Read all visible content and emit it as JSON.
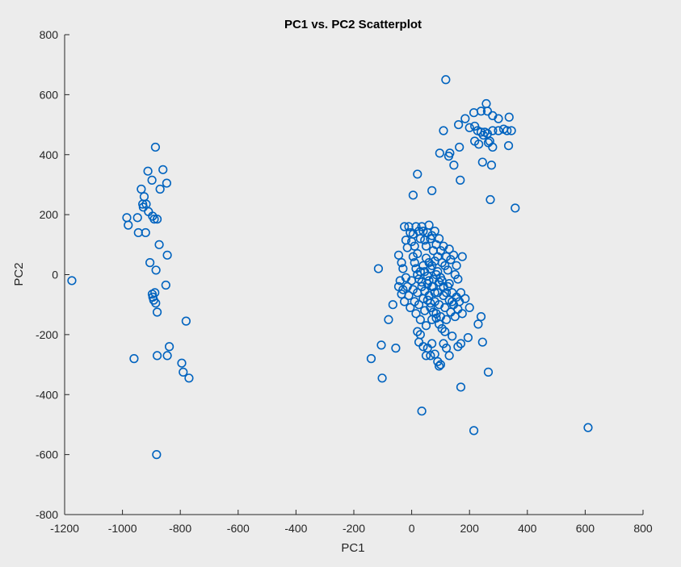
{
  "chart_data": {
    "type": "scatter",
    "title": "PC1 vs. PC2 Scatterplot",
    "xlabel": "PC1",
    "ylabel": "PC2",
    "xlim": [
      -1200,
      800
    ],
    "ylim": [
      -800,
      800
    ],
    "xticks": [
      -1200,
      -1000,
      -800,
      -600,
      -400,
      -200,
      0,
      200,
      400,
      600,
      800
    ],
    "yticks": [
      -800,
      -600,
      -400,
      -200,
      0,
      200,
      400,
      600,
      800
    ],
    "xtick_labels": [
      "-1200",
      "-1000",
      "-800",
      "-600",
      "-400",
      "-200",
      "0",
      "200",
      "400",
      "600",
      "800"
    ],
    "ytick_labels": [
      "-800",
      "-600",
      "-400",
      "-200",
      "0",
      "200",
      "400",
      "600",
      "800"
    ],
    "grid": false,
    "marker_color": "#0063bf",
    "series": [
      {
        "marker": "circle-open",
        "points": [
          [
            -1175,
            -20
          ],
          [
            -985,
            190
          ],
          [
            -980,
            165
          ],
          [
            -948,
            190
          ],
          [
            -945,
            140
          ],
          [
            -935,
            285
          ],
          [
            -930,
            235
          ],
          [
            -928,
            225
          ],
          [
            -925,
            260
          ],
          [
            -920,
            140
          ],
          [
            -918,
            235
          ],
          [
            -912,
            345
          ],
          [
            -910,
            210
          ],
          [
            -905,
            40
          ],
          [
            -898,
            315
          ],
          [
            -896,
            195
          ],
          [
            -890,
            185
          ],
          [
            -886,
            425
          ],
          [
            -884,
            15
          ],
          [
            -880,
            185
          ],
          [
            -870,
            285
          ],
          [
            -873,
            100
          ],
          [
            -860,
            350
          ],
          [
            -847,
            305
          ],
          [
            -845,
            65
          ],
          [
            -850,
            -35
          ],
          [
            -895,
            -75
          ],
          [
            -897,
            -65
          ],
          [
            -892,
            -85
          ],
          [
            -885,
            -95
          ],
          [
            -880,
            -125
          ],
          [
            -888,
            -60
          ],
          [
            -838,
            -240
          ],
          [
            -845,
            -270
          ],
          [
            -880,
            -270
          ],
          [
            -795,
            -295
          ],
          [
            -790,
            -325
          ],
          [
            -780,
            -155
          ],
          [
            -770,
            -345
          ],
          [
            -960,
            -280
          ],
          [
            -882,
            -600
          ],
          [
            118,
            650
          ],
          [
            258,
            570
          ],
          [
            240,
            545
          ],
          [
            262,
            545
          ],
          [
            280,
            530
          ],
          [
            300,
            520
          ],
          [
            215,
            540
          ],
          [
            337,
            525
          ],
          [
            185,
            520
          ],
          [
            200,
            490
          ],
          [
            218,
            495
          ],
          [
            228,
            480
          ],
          [
            240,
            475
          ],
          [
            253,
            475
          ],
          [
            262,
            470
          ],
          [
            280,
            480
          ],
          [
            300,
            480
          ],
          [
            318,
            485
          ],
          [
            330,
            480
          ],
          [
            345,
            480
          ],
          [
            270,
            445
          ],
          [
            265,
            440
          ],
          [
            248,
            465
          ],
          [
            232,
            435
          ],
          [
            218,
            445
          ],
          [
            280,
            425
          ],
          [
            335,
            430
          ],
          [
            165,
            425
          ],
          [
            162,
            500
          ],
          [
            110,
            480
          ],
          [
            97,
            405
          ],
          [
            128,
            395
          ],
          [
            132,
            405
          ],
          [
            146,
            365
          ],
          [
            245,
            375
          ],
          [
            276,
            365
          ],
          [
            168,
            315
          ],
          [
            20,
            335
          ],
          [
            70,
            280
          ],
          [
            5,
            265
          ],
          [
            272,
            250
          ],
          [
            358,
            222
          ],
          [
            -115,
            20
          ],
          [
            -65,
            -100
          ],
          [
            -80,
            -150
          ],
          [
            -55,
            -245
          ],
          [
            -105,
            -235
          ],
          [
            -140,
            -280
          ],
          [
            -102,
            -345
          ],
          [
            -45,
            65
          ],
          [
            -35,
            40
          ],
          [
            -30,
            20
          ],
          [
            -25,
            160
          ],
          [
            -20,
            115
          ],
          [
            -15,
            90
          ],
          [
            -10,
            160
          ],
          [
            -5,
            140
          ],
          [
            0,
            110
          ],
          [
            5,
            135
          ],
          [
            10,
            95
          ],
          [
            15,
            160
          ],
          [
            20,
            70
          ],
          [
            25,
            145
          ],
          [
            30,
            120
          ],
          [
            35,
            160
          ],
          [
            40,
            145
          ],
          [
            45,
            115
          ],
          [
            50,
            95
          ],
          [
            55,
            140
          ],
          [
            60,
            165
          ],
          [
            65,
            120
          ],
          [
            70,
            130
          ],
          [
            75,
            80
          ],
          [
            80,
            145
          ],
          [
            85,
            100
          ],
          [
            90,
            60
          ],
          [
            95,
            120
          ],
          [
            100,
            80
          ],
          [
            105,
            40
          ],
          [
            110,
            95
          ],
          [
            115,
            30
          ],
          [
            120,
            60
          ],
          [
            125,
            15
          ],
          [
            130,
            85
          ],
          [
            135,
            50
          ],
          [
            145,
            65
          ],
          [
            150,
            0
          ],
          [
            155,
            30
          ],
          [
            160,
            -15
          ],
          [
            175,
            60
          ],
          [
            -40,
            -20
          ],
          [
            -45,
            -40
          ],
          [
            -35,
            -65
          ],
          [
            -30,
            -50
          ],
          [
            -25,
            -90
          ],
          [
            -20,
            -10
          ],
          [
            -15,
            -40
          ],
          [
            -10,
            -70
          ],
          [
            -5,
            -110
          ],
          [
            0,
            -20
          ],
          [
            5,
            -50
          ],
          [
            10,
            -90
          ],
          [
            15,
            -130
          ],
          [
            20,
            -60
          ],
          [
            25,
            -100
          ],
          [
            30,
            -150
          ],
          [
            35,
            -40
          ],
          [
            40,
            -80
          ],
          [
            45,
            -120
          ],
          [
            50,
            -170
          ],
          [
            55,
            -30
          ],
          [
            60,
            -70
          ],
          [
            65,
            -110
          ],
          [
            70,
            -150
          ],
          [
            75,
            -40
          ],
          [
            80,
            -90
          ],
          [
            85,
            -130
          ],
          [
            90,
            -60
          ],
          [
            95,
            -100
          ],
          [
            100,
            -140
          ],
          [
            105,
            -20
          ],
          [
            110,
            -70
          ],
          [
            115,
            -110
          ],
          [
            120,
            -150
          ],
          [
            125,
            -40
          ],
          [
            130,
            -85
          ],
          [
            135,
            -125
          ],
          [
            140,
            -60
          ],
          [
            145,
            -100
          ],
          [
            150,
            -140
          ],
          [
            155,
            -75
          ],
          [
            160,
            -115
          ],
          [
            165,
            -90
          ],
          [
            170,
            -60
          ],
          [
            175,
            -130
          ],
          [
            185,
            -80
          ],
          [
            200,
            -110
          ],
          [
            20,
            -190
          ],
          [
            25,
            -225
          ],
          [
            30,
            -200
          ],
          [
            40,
            -240
          ],
          [
            50,
            -270
          ],
          [
            55,
            -245
          ],
          [
            65,
            -270
          ],
          [
            70,
            -230
          ],
          [
            80,
            -265
          ],
          [
            90,
            -290
          ],
          [
            95,
            -305
          ],
          [
            100,
            -300
          ],
          [
            110,
            -230
          ],
          [
            120,
            -245
          ],
          [
            130,
            -270
          ],
          [
            140,
            -205
          ],
          [
            160,
            -240
          ],
          [
            170,
            -230
          ],
          [
            195,
            -210
          ],
          [
            230,
            -165
          ],
          [
            240,
            -140
          ],
          [
            245,
            -225
          ],
          [
            265,
            -325
          ],
          [
            170,
            -375
          ],
          [
            35,
            -455
          ],
          [
            215,
            -520
          ],
          [
            610,
            -510
          ],
          [
            45,
            10
          ],
          [
            55,
            -5
          ],
          [
            65,
            20
          ],
          [
            75,
            -15
          ],
          [
            85,
            0
          ],
          [
            95,
            -25
          ],
          [
            60,
            40
          ],
          [
            70,
            30
          ],
          [
            80,
            45
          ],
          [
            30,
            10
          ],
          [
            40,
            30
          ],
          [
            50,
            55
          ],
          [
            60,
            -20
          ],
          [
            70,
            -40
          ],
          [
            80,
            -60
          ],
          [
            90,
            10
          ],
          [
            100,
            -10
          ],
          [
            110,
            -40
          ],
          [
            120,
            -60
          ],
          [
            130,
            -30
          ],
          [
            140,
            -90
          ],
          [
            5,
            60
          ],
          [
            10,
            40
          ],
          [
            15,
            20
          ],
          [
            20,
            0
          ],
          [
            25,
            -15
          ],
          [
            35,
            -25
          ],
          [
            45,
            -55
          ],
          [
            55,
            -85
          ],
          [
            65,
            -95
          ],
          [
            75,
            -125
          ],
          [
            85,
            -145
          ],
          [
            95,
            -165
          ],
          [
            105,
            -180
          ],
          [
            115,
            -190
          ]
        ]
      }
    ]
  }
}
